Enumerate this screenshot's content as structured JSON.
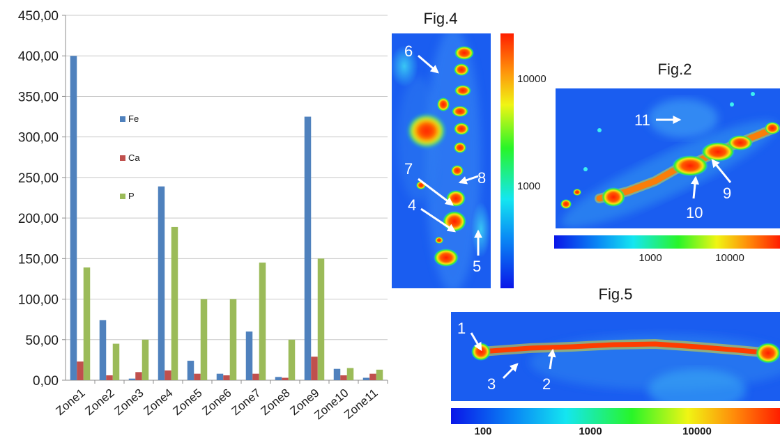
{
  "chart_data": {
    "type": "bar",
    "categories": [
      "Zone1",
      "Zone2",
      "Zone3",
      "Zone4",
      "Zone5",
      "Zone6",
      "Zone7",
      "Zone8",
      "Zone9",
      "Zone10",
      "Zone11"
    ],
    "series": [
      {
        "name": "Fe",
        "color": "#4f81bd",
        "values": [
          400,
          74,
          2,
          239,
          24,
          8,
          60,
          4,
          325,
          14,
          3
        ]
      },
      {
        "name": "Ca",
        "color": "#c0504d",
        "values": [
          23,
          6,
          10,
          12,
          8,
          6,
          8,
          3,
          29,
          6,
          8
        ]
      },
      {
        "name": "P",
        "color": "#9bbb59",
        "values": [
          139,
          45,
          50,
          189,
          100,
          100,
          145,
          50,
          150,
          15,
          13
        ]
      }
    ],
    "ylim": [
      0,
      450
    ],
    "yticks": [
      "0,00",
      "50,00",
      "100,00",
      "150,00",
      "200,00",
      "250,00",
      "300,00",
      "350,00",
      "400,00",
      "450,00"
    ],
    "grid": true,
    "legend_position": "inside-left"
  },
  "figures": {
    "fig4": {
      "title": "Fig.4",
      "colorbar_ticks": [
        "10000",
        "1000"
      ],
      "labels": [
        "6",
        "7",
        "8",
        "4",
        "5"
      ]
    },
    "fig2": {
      "title": "Fig.2",
      "colorbar_ticks": [
        "1000",
        "10000"
      ],
      "labels": [
        "11",
        "9",
        "10"
      ]
    },
    "fig5": {
      "title": "Fig.5",
      "colorbar_ticks": [
        "100",
        "1000",
        "10000"
      ],
      "labels": [
        "1",
        "3",
        "2"
      ]
    }
  },
  "colors": {
    "heat_low": "#0a1cf0",
    "heat_mid": "#19ff23",
    "heat_high": "#ff2a00"
  }
}
